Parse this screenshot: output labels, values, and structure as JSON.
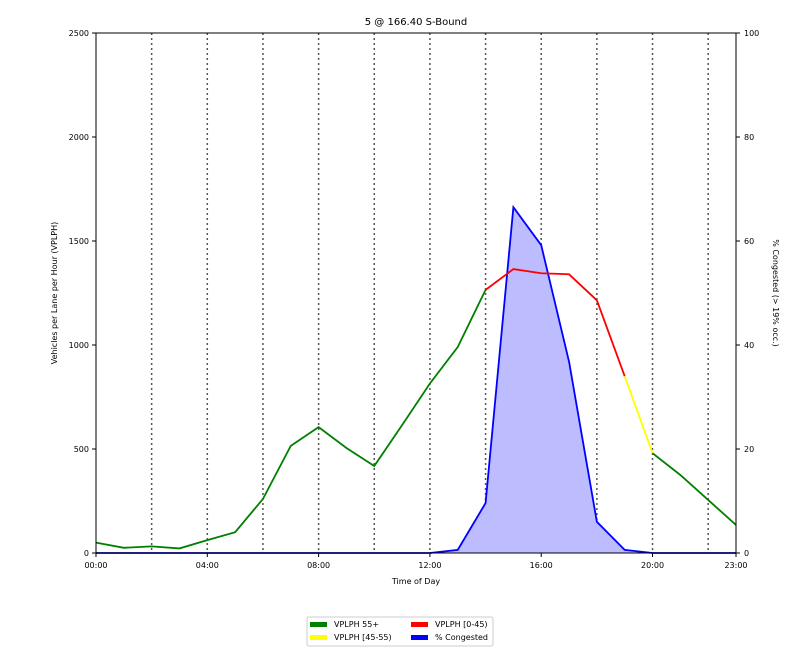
{
  "chart_data": {
    "type": "line",
    "title": "5 @ 166.40 S-Bound",
    "xlabel": "Time of Day",
    "ylabel_left": "Vehicles per Lane per Hour (VPLPH)",
    "ylabel_right": "% Congested (> 19% occ.)",
    "x_hours": [
      0,
      1,
      2,
      3,
      4,
      5,
      6,
      7,
      8,
      9,
      10,
      11,
      12,
      13,
      14,
      15,
      16,
      17,
      18,
      19,
      20,
      21,
      22,
      23
    ],
    "x_ticks": [
      {
        "h": 0,
        "label": "00:00"
      },
      {
        "h": 4,
        "label": "04:00"
      },
      {
        "h": 8,
        "label": "08:00"
      },
      {
        "h": 12,
        "label": "12:00"
      },
      {
        "h": 16,
        "label": "16:00"
      },
      {
        "h": 20,
        "label": "20:00"
      },
      {
        "h": 23,
        "label": "23:00"
      }
    ],
    "gridlines_x_hours": [
      2,
      4,
      6,
      8,
      10,
      12,
      14,
      16,
      18,
      20,
      22
    ],
    "ylim_left": [
      0,
      2500
    ],
    "yticks_left": [
      0,
      500,
      1000,
      1500,
      2000,
      2500
    ],
    "ylim_right": [
      0,
      100
    ],
    "yticks_right": [
      0,
      20,
      40,
      60,
      80,
      100
    ],
    "vplph": [
      50,
      25,
      32,
      22,
      62,
      100,
      260,
      515,
      605,
      505,
      418,
      615,
      815,
      990,
      1265,
      1365,
      1345,
      1340,
      1215,
      850,
      480,
      375,
      255,
      135
    ],
    "speed_color_bands": [
      {
        "name": "VPLPH 55+",
        "color": "#008000",
        "from_h": 0,
        "to_h": 14
      },
      {
        "name": "VPLPH [0-45)",
        "color": "#ff0000",
        "from_h": 14,
        "to_h": 19
      },
      {
        "name": "VPLPH [45-55)",
        "color": "#ffff00",
        "from_h": 19,
        "to_h": 20
      },
      {
        "name": "VPLPH 55+",
        "color": "#008000",
        "from_h": 20,
        "to_h": 23
      }
    ],
    "pct_congested": [
      0,
      0,
      0,
      0,
      0,
      0,
      0,
      0,
      0,
      0,
      0,
      0,
      0,
      0.6,
      9.6,
      66.5,
      59.2,
      36.8,
      6.0,
      0.6,
      0,
      0,
      0,
      0
    ],
    "congested_color": "#0000ff",
    "congested_fill": "#bcbcff",
    "legend": [
      {
        "label": "VPLPH 55+",
        "color": "#008000"
      },
      {
        "label": "VPLPH [45-55)",
        "color": "#ffff00"
      },
      {
        "label": "VPLPH [0-45)",
        "color": "#ff0000"
      },
      {
        "label": "% Congested",
        "color": "#0000ff"
      }
    ],
    "legend_placement": "bottom-center",
    "grid": "vertical-dotted"
  }
}
